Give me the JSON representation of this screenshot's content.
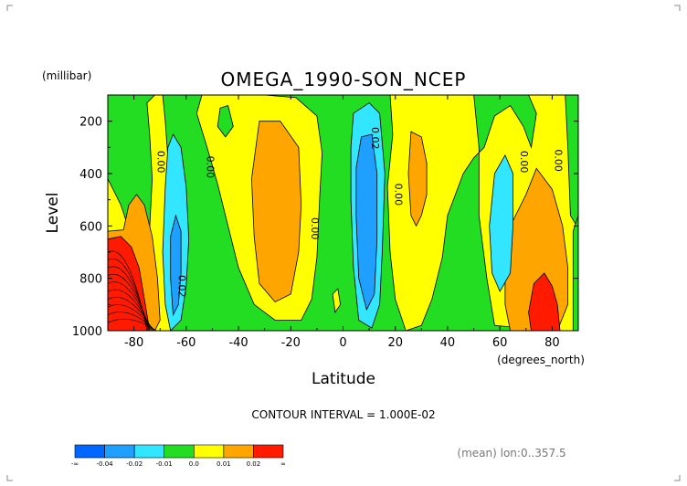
{
  "chart_data": {
    "type": "heatmap",
    "title": "OMEGA_1990-SON_NCEP",
    "units_label": "(millibar)",
    "xlabel": "Latitude",
    "x_units_label": "(degrees_north)",
    "ylabel": "Level",
    "xlim": [
      -90,
      90
    ],
    "ylim": [
      1000,
      100
    ],
    "x_ticks": [
      -80,
      -60,
      -40,
      -20,
      0,
      20,
      40,
      60,
      80
    ],
    "x_tick_labels": [
      "-80",
      "-60",
      "-40",
      "-20",
      "0",
      "20",
      "40",
      "60",
      "80"
    ],
    "y_ticks": [
      200,
      400,
      600,
      800,
      1000
    ],
    "y_tick_labels": [
      "200",
      "400",
      "600",
      "800",
      "1000"
    ],
    "contour_interval_text": "CONTOUR INTERVAL = 1.000E-02",
    "footer_note": "(mean) lon:0..357.5",
    "colorbar": {
      "colors": [
        "#0066ff",
        "#1f9fff",
        "#33e6ff",
        "#22dd22",
        "#ffff00",
        "#ffa500",
        "#ff1a00"
      ],
      "boundary_labels": [
        "-∞",
        "-0.04",
        "-0.02",
        "-0.01",
        "0.0",
        "0.01",
        "0.02",
        "∞"
      ]
    },
    "contour_labels": [
      {
        "text": "0.00",
        "lat": -71,
        "lev": 355
      },
      {
        "text": "0.00",
        "lat": -52,
        "lev": 375
      },
      {
        "text": "0.02",
        "lat": -63,
        "lev": 830
      },
      {
        "text": "0.00",
        "lat": -12,
        "lev": 610
      },
      {
        "text": "0.02",
        "lat": 11,
        "lev": 265
      },
      {
        "text": "0.00",
        "lat": 20,
        "lev": 480
      },
      {
        "text": "0.00",
        "lat": 68,
        "lev": 355
      },
      {
        "text": "0.00",
        "lat": 81,
        "lev": 350
      }
    ],
    "grid": false
  }
}
